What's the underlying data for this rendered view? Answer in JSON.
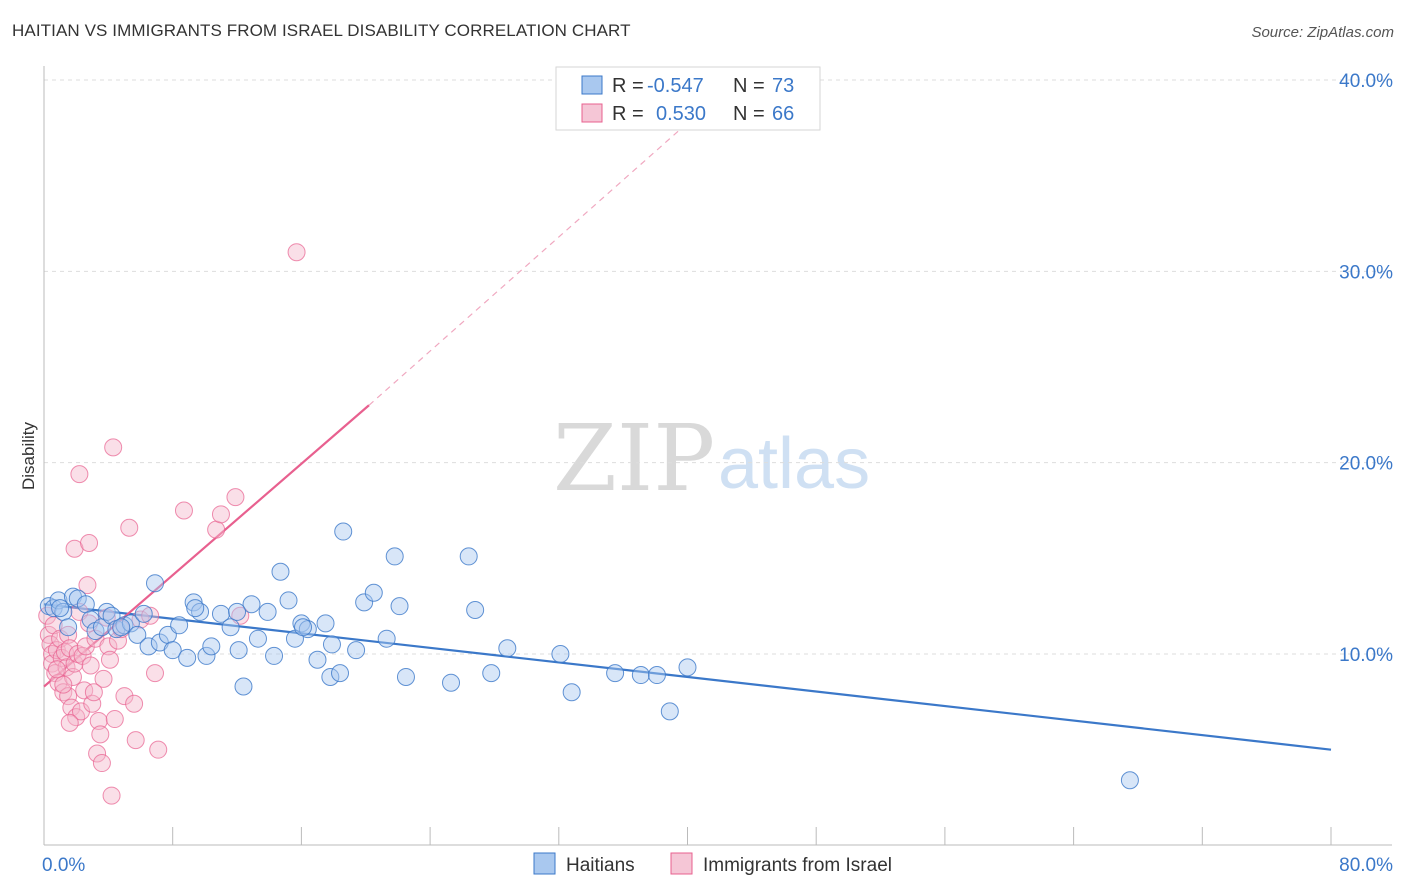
{
  "header": {
    "title": "HAITIAN VS IMMIGRANTS FROM ISRAEL DISABILITY CORRELATION CHART",
    "source": "Source: ZipAtlas.com"
  },
  "watermark": {
    "zip": "ZIP",
    "atlas": "atlas"
  },
  "colors": {
    "blue": "#3b78c9",
    "blue_fill": "#a9c8ef",
    "pink": "#e8608f",
    "pink_fill": "#f5b8cc",
    "grid": "#dddddd"
  },
  "legend": {
    "rows": [
      {
        "r_label": "R =",
        "r_value": "-0.547",
        "n_label": "N =",
        "n_value": "73"
      },
      {
        "r_label": "R =",
        "r_value": "0.530",
        "n_label": "N =",
        "n_value": "66"
      }
    ]
  },
  "chart_data": {
    "type": "scatter",
    "title": "HAITIAN VS IMMIGRANTS FROM ISRAEL DISABILITY CORRELATION CHART",
    "xlabel": "",
    "ylabel": "Disability",
    "xlim": [
      0,
      80
    ],
    "ylim": [
      0,
      41
    ],
    "x_tick_labels": [
      "0.0%",
      "80.0%"
    ],
    "y_ticks": [
      10,
      20,
      30,
      40
    ],
    "y_tick_labels": [
      "10.0%",
      "20.0%",
      "30.0%",
      "40.0%"
    ],
    "grid": true,
    "legend_position": "top-center",
    "series": [
      {
        "name": "Haitians",
        "color": "#3b78c9",
        "r": -0.547,
        "n": 73,
        "trend": {
          "x": [
            0,
            80
          ],
          "y": [
            12.6,
            5.0
          ]
        },
        "points": [
          [
            0.3,
            12.5
          ],
          [
            0.6,
            12.4
          ],
          [
            0.9,
            12.8
          ],
          [
            1.2,
            12.2
          ],
          [
            1.5,
            11.4
          ],
          [
            1.8,
            13.0
          ],
          [
            2.1,
            12.9
          ],
          [
            2.6,
            12.6
          ],
          [
            2.9,
            11.8
          ],
          [
            3.2,
            11.2
          ],
          [
            3.6,
            11.4
          ],
          [
            3.9,
            12.2
          ],
          [
            4.2,
            12.0
          ],
          [
            4.5,
            11.3
          ],
          [
            5.0,
            11.5
          ],
          [
            5.4,
            11.6
          ],
          [
            5.8,
            11.0
          ],
          [
            6.2,
            12.1
          ],
          [
            6.5,
            10.4
          ],
          [
            6.9,
            13.7
          ],
          [
            7.2,
            10.6
          ],
          [
            7.7,
            11.0
          ],
          [
            8.0,
            10.2
          ],
          [
            8.4,
            11.5
          ],
          [
            8.9,
            9.8
          ],
          [
            9.3,
            12.7
          ],
          [
            9.7,
            12.2
          ],
          [
            10.1,
            9.9
          ],
          [
            10.4,
            10.4
          ],
          [
            11.0,
            12.1
          ],
          [
            11.6,
            11.4
          ],
          [
            12.1,
            10.2
          ],
          [
            12.4,
            8.3
          ],
          [
            12.9,
            12.6
          ],
          [
            13.3,
            10.8
          ],
          [
            13.9,
            12.2
          ],
          [
            14.3,
            9.9
          ],
          [
            14.7,
            14.3
          ],
          [
            15.2,
            12.8
          ],
          [
            15.6,
            10.8
          ],
          [
            16.0,
            11.6
          ],
          [
            16.4,
            11.3
          ],
          [
            17.0,
            9.7
          ],
          [
            17.5,
            11.6
          ],
          [
            17.8,
            8.8
          ],
          [
            17.9,
            10.5
          ],
          [
            18.4,
            9.0
          ],
          [
            18.6,
            16.4
          ],
          [
            19.4,
            10.2
          ],
          [
            19.9,
            12.7
          ],
          [
            20.5,
            13.2
          ],
          [
            21.3,
            10.8
          ],
          [
            21.8,
            15.1
          ],
          [
            22.1,
            12.5
          ],
          [
            22.5,
            8.8
          ],
          [
            25.3,
            8.5
          ],
          [
            26.4,
            15.1
          ],
          [
            26.8,
            12.3
          ],
          [
            27.8,
            9.0
          ],
          [
            28.8,
            10.3
          ],
          [
            32.1,
            10.0
          ],
          [
            32.8,
            8.0
          ],
          [
            35.5,
            9.0
          ],
          [
            37.1,
            8.9
          ],
          [
            38.1,
            8.9
          ],
          [
            38.9,
            7.0
          ],
          [
            40.0,
            9.3
          ],
          [
            67.5,
            3.4
          ],
          [
            1.0,
            12.4
          ],
          [
            4.8,
            11.4
          ],
          [
            9.4,
            12.4
          ],
          [
            12.0,
            12.2
          ],
          [
            16.1,
            11.4
          ]
        ]
      },
      {
        "name": "Immigrants from Israel",
        "color": "#e8608f",
        "r": 0.53,
        "n": 66,
        "trend": {
          "x": [
            0,
            20.2
          ],
          "y": [
            8.3,
            23.0
          ]
        },
        "trend_extension": {
          "x": [
            20.2,
            41.0
          ],
          "y": [
            23.0,
            38.5
          ]
        },
        "points": [
          [
            0.2,
            12.0
          ],
          [
            0.3,
            11.0
          ],
          [
            0.4,
            10.5
          ],
          [
            0.5,
            10.0
          ],
          [
            0.5,
            9.5
          ],
          [
            0.6,
            11.5
          ],
          [
            0.7,
            9.0
          ],
          [
            0.8,
            10.2
          ],
          [
            0.9,
            8.5
          ],
          [
            1.0,
            10.8
          ],
          [
            1.1,
            9.8
          ],
          [
            1.2,
            8.0
          ],
          [
            1.3,
            10.1
          ],
          [
            1.4,
            9.3
          ],
          [
            1.5,
            7.8
          ],
          [
            1.5,
            11.0
          ],
          [
            1.6,
            10.3
          ],
          [
            1.7,
            7.2
          ],
          [
            1.8,
            8.8
          ],
          [
            1.9,
            9.5
          ],
          [
            2.0,
            6.7
          ],
          [
            2.1,
            10.0
          ],
          [
            2.2,
            12.2
          ],
          [
            2.3,
            7.0
          ],
          [
            2.4,
            9.9
          ],
          [
            2.5,
            8.1
          ],
          [
            2.6,
            10.4
          ],
          [
            2.7,
            13.6
          ],
          [
            2.8,
            11.6
          ],
          [
            2.9,
            9.4
          ],
          [
            3.0,
            7.4
          ],
          [
            3.2,
            10.8
          ],
          [
            3.3,
            4.8
          ],
          [
            3.4,
            6.5
          ],
          [
            3.5,
            5.8
          ],
          [
            3.6,
            4.3
          ],
          [
            3.7,
            8.7
          ],
          [
            3.9,
            11.9
          ],
          [
            4.0,
            10.4
          ],
          [
            4.1,
            9.7
          ],
          [
            4.2,
            2.6
          ],
          [
            4.3,
            20.8
          ],
          [
            4.4,
            6.6
          ],
          [
            4.6,
            10.7
          ],
          [
            4.8,
            11.3
          ],
          [
            5.0,
            7.8
          ],
          [
            5.3,
            16.6
          ],
          [
            5.6,
            7.4
          ],
          [
            5.7,
            5.5
          ],
          [
            6.0,
            11.8
          ],
          [
            6.6,
            12.0
          ],
          [
            6.9,
            9.0
          ],
          [
            7.1,
            5.0
          ],
          [
            8.7,
            17.5
          ],
          [
            10.7,
            16.5
          ],
          [
            11.0,
            17.3
          ],
          [
            11.9,
            18.2
          ],
          [
            12.2,
            12.0
          ],
          [
            15.7,
            31.0
          ],
          [
            2.2,
            19.4
          ],
          [
            1.9,
            15.5
          ],
          [
            2.8,
            15.8
          ],
          [
            1.2,
            8.4
          ],
          [
            3.1,
            8.0
          ],
          [
            0.8,
            9.2
          ],
          [
            1.6,
            6.4
          ]
        ]
      }
    ]
  },
  "bottom_legend": {
    "items": [
      {
        "label": "Haitians"
      },
      {
        "label": "Immigrants from Israel"
      }
    ]
  }
}
